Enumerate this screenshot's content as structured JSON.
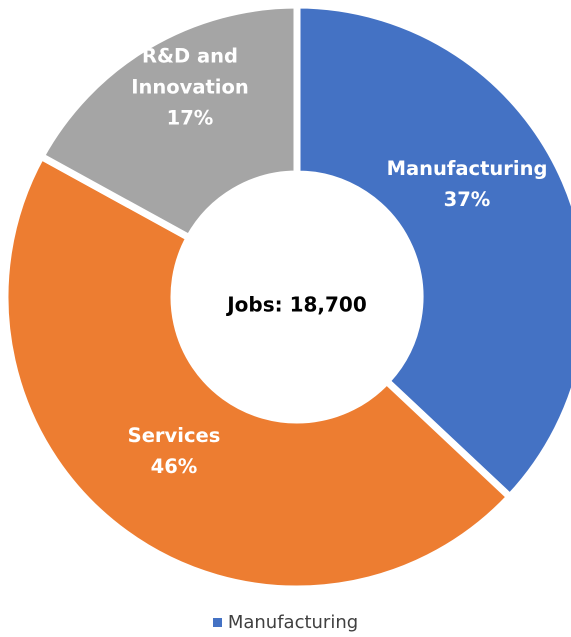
{
  "chart_data": {
    "type": "pie",
    "center_label": "Jobs: 18,700",
    "slices": [
      {
        "name": "Manufacturing",
        "value": 37,
        "value_label": "37%",
        "label_lines": [
          "Manufacturing"
        ],
        "color": "#4472C4"
      },
      {
        "name": "Services",
        "value": 46,
        "value_label": "46%",
        "label_lines": [
          "Services"
        ],
        "color": "#ED7D31"
      },
      {
        "name": "R&D and Innovation",
        "value": 17,
        "value_label": "17%",
        "label_lines": [
          "R&D and",
          "Innovation"
        ],
        "color": "#A5A5A5"
      }
    ],
    "legend": [
      {
        "label": "Manufacturing",
        "color": "#4472C4"
      }
    ],
    "legend_position": "bottom"
  }
}
